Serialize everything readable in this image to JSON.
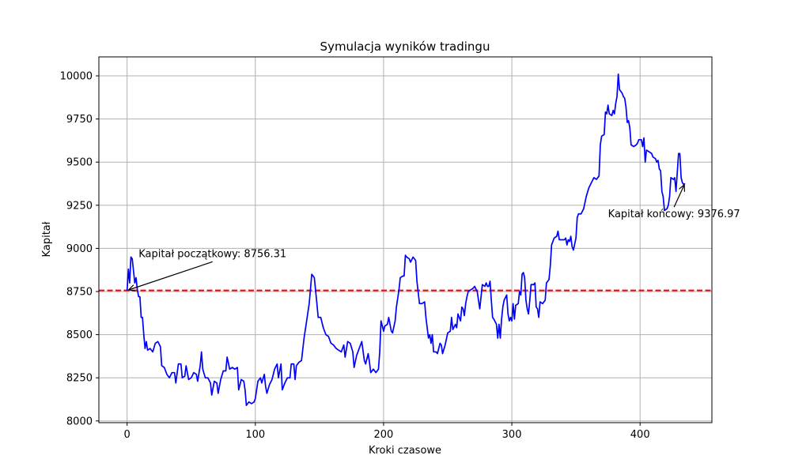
{
  "chart_data": {
    "type": "line",
    "title": "Symulacja wyników tradingu",
    "xlabel": "Kroki czasowe",
    "ylabel": "Kapitał",
    "xlim": [
      -22,
      456
    ],
    "ylim": [
      7990,
      10110
    ],
    "x_ticks": [
      0,
      100,
      200,
      300,
      400
    ],
    "y_ticks": [
      8000,
      8250,
      8500,
      8750,
      9000,
      9250,
      9500,
      9750,
      10000
    ],
    "grid": true,
    "colors": {
      "series": "#0000ff",
      "reference": "#ff0000",
      "grid": "#b0b0b0"
    },
    "series": [
      {
        "points": [
          [
            0,
            8756
          ],
          [
            1,
            8880
          ],
          [
            2,
            8800
          ],
          [
            3,
            8950
          ],
          [
            4,
            8940
          ],
          [
            5,
            8870
          ],
          [
            6,
            8800
          ],
          [
            7,
            8830
          ],
          [
            8,
            8760
          ],
          [
            9,
            8720
          ],
          [
            10,
            8720
          ],
          [
            11,
            8600
          ],
          [
            12,
            8600
          ],
          [
            13,
            8500
          ],
          [
            14,
            8420
          ],
          [
            15,
            8460
          ],
          [
            16,
            8410
          ],
          [
            18,
            8420
          ],
          [
            20,
            8400
          ],
          [
            22,
            8450
          ],
          [
            24,
            8460
          ],
          [
            26,
            8430
          ],
          [
            27,
            8320
          ],
          [
            29,
            8310
          ],
          [
            31,
            8270
          ],
          [
            33,
            8250
          ],
          [
            35,
            8280
          ],
          [
            37,
            8280
          ],
          [
            38,
            8220
          ],
          [
            40,
            8330
          ],
          [
            42,
            8330
          ],
          [
            43,
            8250
          ],
          [
            45,
            8260
          ],
          [
            46,
            8320
          ],
          [
            48,
            8240
          ],
          [
            50,
            8250
          ],
          [
            52,
            8280
          ],
          [
            54,
            8270
          ],
          [
            55,
            8230
          ],
          [
            57,
            8320
          ],
          [
            58,
            8400
          ],
          [
            59,
            8300
          ],
          [
            61,
            8250
          ],
          [
            63,
            8250
          ],
          [
            65,
            8220
          ],
          [
            66,
            8150
          ],
          [
            68,
            8230
          ],
          [
            70,
            8220
          ],
          [
            71,
            8160
          ],
          [
            73,
            8240
          ],
          [
            75,
            8290
          ],
          [
            77,
            8290
          ],
          [
            78,
            8370
          ],
          [
            80,
            8300
          ],
          [
            82,
            8310
          ],
          [
            84,
            8300
          ],
          [
            86,
            8310
          ],
          [
            87,
            8180
          ],
          [
            89,
            8240
          ],
          [
            91,
            8230
          ],
          [
            92,
            8180
          ],
          [
            93,
            8090
          ],
          [
            95,
            8110
          ],
          [
            97,
            8100
          ],
          [
            99,
            8110
          ],
          [
            100,
            8130
          ],
          [
            102,
            8230
          ],
          [
            104,
            8250
          ],
          [
            105,
            8220
          ],
          [
            107,
            8270
          ],
          [
            108,
            8200
          ],
          [
            109,
            8160
          ],
          [
            111,
            8210
          ],
          [
            113,
            8240
          ],
          [
            115,
            8300
          ],
          [
            117,
            8330
          ],
          [
            118,
            8250
          ],
          [
            120,
            8330
          ],
          [
            121,
            8180
          ],
          [
            123,
            8220
          ],
          [
            125,
            8250
          ],
          [
            127,
            8250
          ],
          [
            128,
            8330
          ],
          [
            130,
            8330
          ],
          [
            131,
            8240
          ],
          [
            132,
            8320
          ],
          [
            134,
            8340
          ],
          [
            136,
            8350
          ],
          [
            138,
            8480
          ],
          [
            140,
            8580
          ],
          [
            142,
            8680
          ],
          [
            144,
            8850
          ],
          [
            146,
            8830
          ],
          [
            148,
            8680
          ],
          [
            149,
            8600
          ],
          [
            151,
            8600
          ],
          [
            153,
            8540
          ],
          [
            155,
            8500
          ],
          [
            157,
            8490
          ],
          [
            159,
            8450
          ],
          [
            161,
            8440
          ],
          [
            163,
            8420
          ],
          [
            165,
            8410
          ],
          [
            167,
            8400
          ],
          [
            169,
            8440
          ],
          [
            170,
            8370
          ],
          [
            172,
            8460
          ],
          [
            174,
            8450
          ],
          [
            176,
            8400
          ],
          [
            177,
            8310
          ],
          [
            179,
            8380
          ],
          [
            181,
            8420
          ],
          [
            183,
            8460
          ],
          [
            185,
            8350
          ],
          [
            186,
            8330
          ],
          [
            188,
            8390
          ],
          [
            189,
            8340
          ],
          [
            190,
            8280
          ],
          [
            192,
            8300
          ],
          [
            194,
            8280
          ],
          [
            196,
            8300
          ],
          [
            197,
            8400
          ],
          [
            198,
            8580
          ],
          [
            200,
            8520
          ],
          [
            201,
            8550
          ],
          [
            203,
            8560
          ],
          [
            204,
            8600
          ],
          [
            206,
            8520
          ],
          [
            207,
            8510
          ],
          [
            209,
            8580
          ],
          [
            210,
            8660
          ],
          [
            212,
            8760
          ],
          [
            213,
            8830
          ],
          [
            215,
            8840
          ],
          [
            216,
            8840
          ],
          [
            217,
            8960
          ],
          [
            218,
            8950
          ],
          [
            220,
            8940
          ],
          [
            221,
            8920
          ],
          [
            223,
            8950
          ],
          [
            225,
            8930
          ],
          [
            226,
            8810
          ],
          [
            228,
            8680
          ],
          [
            230,
            8680
          ],
          [
            232,
            8690
          ],
          [
            233,
            8600
          ],
          [
            235,
            8480
          ],
          [
            236,
            8500
          ],
          [
            237,
            8450
          ],
          [
            238,
            8500
          ],
          [
            239,
            8400
          ],
          [
            241,
            8400
          ],
          [
            242,
            8390
          ],
          [
            244,
            8450
          ],
          [
            245,
            8440
          ],
          [
            246,
            8390
          ],
          [
            248,
            8440
          ],
          [
            250,
            8510
          ],
          [
            252,
            8520
          ],
          [
            253,
            8600
          ],
          [
            254,
            8530
          ],
          [
            256,
            8560
          ],
          [
            257,
            8540
          ],
          [
            258,
            8620
          ],
          [
            260,
            8580
          ],
          [
            261,
            8660
          ],
          [
            262,
            8650
          ],
          [
            263,
            8610
          ],
          [
            264,
            8680
          ],
          [
            265,
            8720
          ],
          [
            266,
            8750
          ],
          [
            268,
            8760
          ],
          [
            270,
            8770
          ],
          [
            271,
            8780
          ],
          [
            273,
            8750
          ],
          [
            274,
            8700
          ],
          [
            275,
            8650
          ],
          [
            276,
            8720
          ],
          [
            277,
            8790
          ],
          [
            279,
            8780
          ],
          [
            280,
            8800
          ],
          [
            281,
            8780
          ],
          [
            282,
            8780
          ],
          [
            283,
            8810
          ],
          [
            284,
            8700
          ],
          [
            285,
            8600
          ],
          [
            286,
            8590
          ],
          [
            288,
            8560
          ],
          [
            289,
            8480
          ],
          [
            290,
            8560
          ],
          [
            291,
            8480
          ],
          [
            292,
            8590
          ],
          [
            293,
            8660
          ],
          [
            294,
            8700
          ],
          [
            296,
            8730
          ],
          [
            297,
            8620
          ],
          [
            298,
            8580
          ],
          [
            299,
            8600
          ],
          [
            300,
            8580
          ],
          [
            301,
            8680
          ],
          [
            302,
            8590
          ],
          [
            303,
            8670
          ],
          [
            305,
            8680
          ],
          [
            306,
            8750
          ],
          [
            307,
            8730
          ],
          [
            308,
            8850
          ],
          [
            309,
            8860
          ],
          [
            310,
            8830
          ],
          [
            311,
            8700
          ],
          [
            312,
            8650
          ],
          [
            313,
            8620
          ],
          [
            314,
            8700
          ],
          [
            315,
            8790
          ],
          [
            317,
            8790
          ],
          [
            318,
            8800
          ],
          [
            319,
            8660
          ],
          [
            320,
            8650
          ],
          [
            321,
            8600
          ],
          [
            322,
            8690
          ],
          [
            324,
            8680
          ],
          [
            326,
            8700
          ],
          [
            327,
            8800
          ],
          [
            329,
            8820
          ],
          [
            330,
            8900
          ],
          [
            331,
            9020
          ],
          [
            333,
            9060
          ],
          [
            335,
            9070
          ],
          [
            336,
            9100
          ],
          [
            337,
            9050
          ],
          [
            339,
            9050
          ],
          [
            341,
            9050
          ],
          [
            342,
            9060
          ],
          [
            343,
            9020
          ],
          [
            344,
            9050
          ],
          [
            345,
            9040
          ],
          [
            346,
            9070
          ],
          [
            347,
            9010
          ],
          [
            348,
            8990
          ],
          [
            350,
            9060
          ],
          [
            351,
            9180
          ],
          [
            352,
            9200
          ],
          [
            354,
            9200
          ],
          [
            356,
            9230
          ],
          [
            358,
            9300
          ],
          [
            360,
            9350
          ],
          [
            362,
            9380
          ],
          [
            364,
            9410
          ],
          [
            366,
            9400
          ],
          [
            368,
            9420
          ],
          [
            369,
            9600
          ],
          [
            370,
            9650
          ],
          [
            372,
            9660
          ],
          [
            373,
            9790
          ],
          [
            374,
            9780
          ],
          [
            375,
            9830
          ],
          [
            376,
            9780
          ],
          [
            378,
            9770
          ],
          [
            379,
            9800
          ],
          [
            380,
            9780
          ],
          [
            381,
            9840
          ],
          [
            382,
            9880
          ],
          [
            383,
            10010
          ],
          [
            384,
            9920
          ],
          [
            386,
            9900
          ],
          [
            387,
            9880
          ],
          [
            388,
            9870
          ],
          [
            389,
            9820
          ],
          [
            390,
            9730
          ],
          [
            391,
            9740
          ],
          [
            392,
            9700
          ],
          [
            393,
            9600
          ],
          [
            395,
            9590
          ],
          [
            397,
            9600
          ],
          [
            398,
            9610
          ],
          [
            399,
            9630
          ],
          [
            401,
            9630
          ],
          [
            402,
            9590
          ],
          [
            403,
            9640
          ],
          [
            404,
            9500
          ],
          [
            405,
            9570
          ],
          [
            407,
            9560
          ],
          [
            409,
            9550
          ],
          [
            410,
            9530
          ],
          [
            412,
            9520
          ],
          [
            413,
            9500
          ],
          [
            414,
            9510
          ],
          [
            415,
            9460
          ],
          [
            416,
            9450
          ],
          [
            417,
            9330
          ],
          [
            418,
            9300
          ],
          [
            419,
            9220
          ],
          [
            421,
            9230
          ],
          [
            422,
            9250
          ],
          [
            423,
            9300
          ],
          [
            424,
            9410
          ],
          [
            426,
            9400
          ],
          [
            427,
            9410
          ],
          [
            428,
            9330
          ],
          [
            429,
            9440
          ],
          [
            430,
            9550
          ],
          [
            431,
            9550
          ],
          [
            432,
            9410
          ],
          [
            433,
            9380
          ],
          [
            434,
            9370
          ],
          [
            435,
            9377
          ]
        ]
      }
    ],
    "reference_line": {
      "y": 8756.31,
      "style": "dashed"
    },
    "annotations": [
      {
        "text": "Kapitał początkowy: 8756.31",
        "point": [
          0,
          8756.31
        ],
        "text_pos": [
          9,
          8950
        ]
      },
      {
        "text": "Kapitał końcowy: 9376.97",
        "point": [
          435,
          9376.97
        ],
        "text_pos": [
          375,
          9180
        ]
      }
    ]
  }
}
